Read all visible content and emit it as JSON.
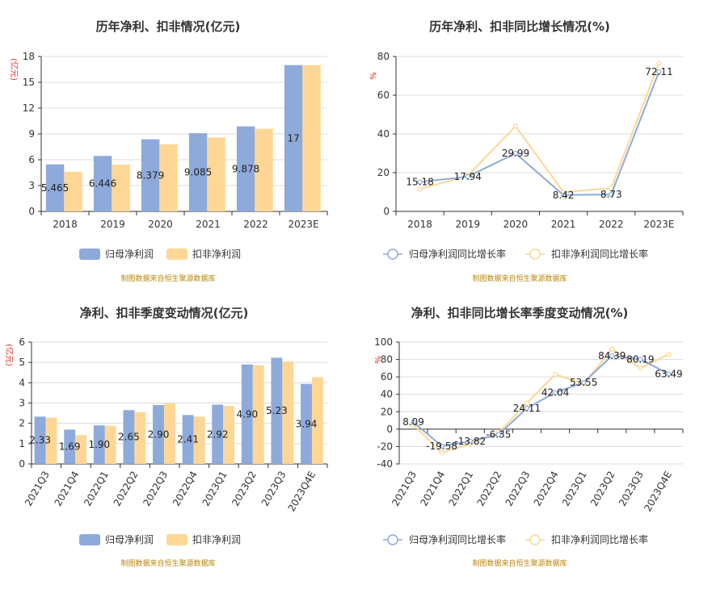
{
  "colors": {
    "primary": "#8eaadb",
    "secondary": "#fed796",
    "unit": "#e0301e",
    "source": "#b8860b",
    "grid": "#dcdcdc",
    "axis": "#333333"
  },
  "chart_data": [
    {
      "type": "bar",
      "title": "历年净利、扣非情况(亿元)",
      "unit_label": "(亿元)",
      "categories": [
        "2018",
        "2019",
        "2020",
        "2021",
        "2022",
        "2023E"
      ],
      "y_ticks": [
        "0",
        "3",
        "6",
        "9",
        "12",
        "15",
        "18"
      ],
      "ylim": [
        0,
        18
      ],
      "series": [
        {
          "name": "归母净利润",
          "values": [
            5.465,
            6.446,
            8.379,
            9.085,
            9.878,
            17
          ],
          "labels": [
            "5.465",
            "6.446",
            "8.379",
            "9.085",
            "9.878",
            "17"
          ]
        },
        {
          "name": "扣非净利润",
          "values": [
            4.6,
            5.45,
            7.8,
            8.6,
            9.6,
            17
          ]
        }
      ],
      "source": "制图数据来自恒生聚源数据库"
    },
    {
      "type": "line",
      "title": "历年净利、扣非同比增长情况(%)",
      "unit_label": "%",
      "categories": [
        "2018",
        "2019",
        "2020",
        "2021",
        "2022",
        "2023E"
      ],
      "y_ticks": [
        "0",
        "20",
        "40",
        "60",
        "80"
      ],
      "ylim": [
        0,
        80
      ],
      "series": [
        {
          "name": "归母净利润同比增长率",
          "values": [
            15.18,
            17.94,
            29.99,
            8.42,
            8.73,
            72.11
          ],
          "labels": [
            "15.18",
            "17.94",
            "29.99",
            "8.42",
            "8.73",
            "72.11"
          ]
        },
        {
          "name": "扣非净利润同比增长率",
          "values": [
            11.5,
            18.5,
            44,
            10,
            12,
            76.5
          ]
        }
      ],
      "source": "制图数据来自恒生聚源数据库"
    },
    {
      "type": "bar",
      "title": "净利、扣非季度变动情况(亿元)",
      "unit_label": "(亿元)",
      "categories": [
        "2021Q3",
        "2021Q4",
        "2022Q1",
        "2022Q2",
        "2022Q3",
        "2022Q4",
        "2023Q1",
        "2023Q2",
        "2023Q3",
        "2023Q4E"
      ],
      "y_ticks": [
        "0",
        "1",
        "2",
        "3",
        "4",
        "5",
        "6"
      ],
      "ylim": [
        0,
        6
      ],
      "series": [
        {
          "name": "归母净利润",
          "values": [
            2.33,
            1.69,
            1.9,
            2.65,
            2.9,
            2.41,
            2.92,
            4.9,
            5.23,
            3.94
          ],
          "labels": [
            "2.33",
            "1.69",
            "1.90",
            "2.65",
            "2.90",
            "2.41",
            "2.92",
            "4.90",
            "5.23",
            "3.94"
          ]
        },
        {
          "name": "扣非净利润",
          "values": [
            2.28,
            1.42,
            1.88,
            2.55,
            2.98,
            2.33,
            2.85,
            4.86,
            5.05,
            4.27
          ]
        }
      ],
      "source": "制图数据来自恒生聚源数据库"
    },
    {
      "type": "line",
      "title": "净利、扣非同比增长率季度变动情况(%)",
      "unit_label": "%",
      "categories": [
        "2021Q3",
        "2021Q4",
        "2022Q1",
        "2022Q2",
        "2022Q3",
        "2022Q4",
        "2023Q1",
        "2023Q2",
        "2023Q3",
        "2023Q4E"
      ],
      "y_ticks": [
        "-40",
        "-20",
        "0",
        "20",
        "40",
        "60",
        "80",
        "100"
      ],
      "ylim": [
        -40,
        100
      ],
      "series": [
        {
          "name": "归母净利润同比增长率",
          "values": [
            8.09,
            -19.58,
            -13.82,
            -6.35,
            24.11,
            42.04,
            53.55,
            84.39,
            80.19,
            63.49
          ],
          "labels": [
            "8.09",
            "-19.58",
            "-13.82",
            "-6.35",
            "24.11",
            "42.04",
            "53.55",
            "84.39",
            "80.19",
            "63.49"
          ]
        },
        {
          "name": "扣非净利润同比增长率",
          "values": [
            5,
            -27,
            -17,
            -4,
            30,
            63,
            52,
            92,
            70,
            86
          ]
        }
      ],
      "source": "制图数据来自恒生聚源数据库"
    }
  ]
}
